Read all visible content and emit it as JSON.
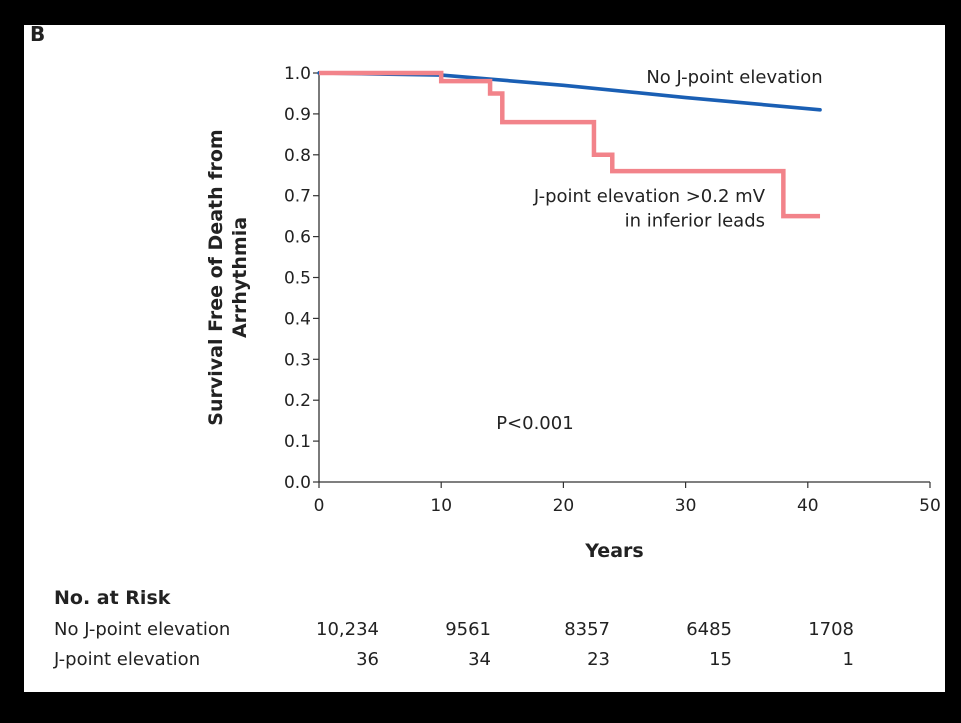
{
  "panel_label": "B",
  "chart_data": {
    "type": "line",
    "title": "",
    "xlabel": "Years",
    "ylabel": "Survival Free of Death from Arrhythmia",
    "xlim": [
      0,
      50
    ],
    "ylim": [
      0.0,
      1.0
    ],
    "xticks": [
      0,
      10,
      20,
      30,
      40,
      50
    ],
    "yticks": [
      0.0,
      0.1,
      0.2,
      0.3,
      0.4,
      0.5,
      0.6,
      0.7,
      0.8,
      0.9,
      1.0
    ],
    "ytick_labels": [
      "0.0",
      "0.1",
      "0.2",
      "0.3",
      "0.4",
      "0.5",
      "0.6",
      "0.7",
      "0.8",
      "0.9",
      "1.0"
    ],
    "grid": false,
    "series": [
      {
        "name": "No J-point elevation",
        "color": "#1a5fb4",
        "style": "line",
        "x": [
          0,
          10,
          20,
          30,
          41
        ],
        "y": [
          1.0,
          0.995,
          0.97,
          0.94,
          0.91
        ]
      },
      {
        "name": "J-point elevation >0.2 mV in inferior leads",
        "color": "#f2838a",
        "style": "step",
        "x": [
          0,
          10,
          14,
          15,
          22.5,
          24,
          38,
          41
        ],
        "y": [
          1.0,
          0.98,
          0.95,
          0.88,
          0.8,
          0.76,
          0.65,
          0.65
        ]
      }
    ],
    "annotations": [
      {
        "text": "No J-point elevation",
        "x": 34,
        "y": 0.975,
        "anchor": "middle"
      },
      {
        "text": "J-point elevation >0.2 mV",
        "x": 36.5,
        "y": 0.685,
        "anchor": "end"
      },
      {
        "text": "in inferior leads",
        "x": 36.5,
        "y": 0.625,
        "anchor": "end"
      },
      {
        "text": "P<0.001",
        "x": 14.5,
        "y": 0.13,
        "anchor": "start"
      }
    ]
  },
  "risk_table": {
    "title": "No. at Risk",
    "rows": [
      {
        "label": "No J-point elevation",
        "values": [
          "10,234",
          "9561",
          "8357",
          "6485",
          "1708"
        ]
      },
      {
        "label": "J-point elevation",
        "values": [
          "36",
          "34",
          "23",
          "15",
          "1"
        ]
      }
    ]
  }
}
